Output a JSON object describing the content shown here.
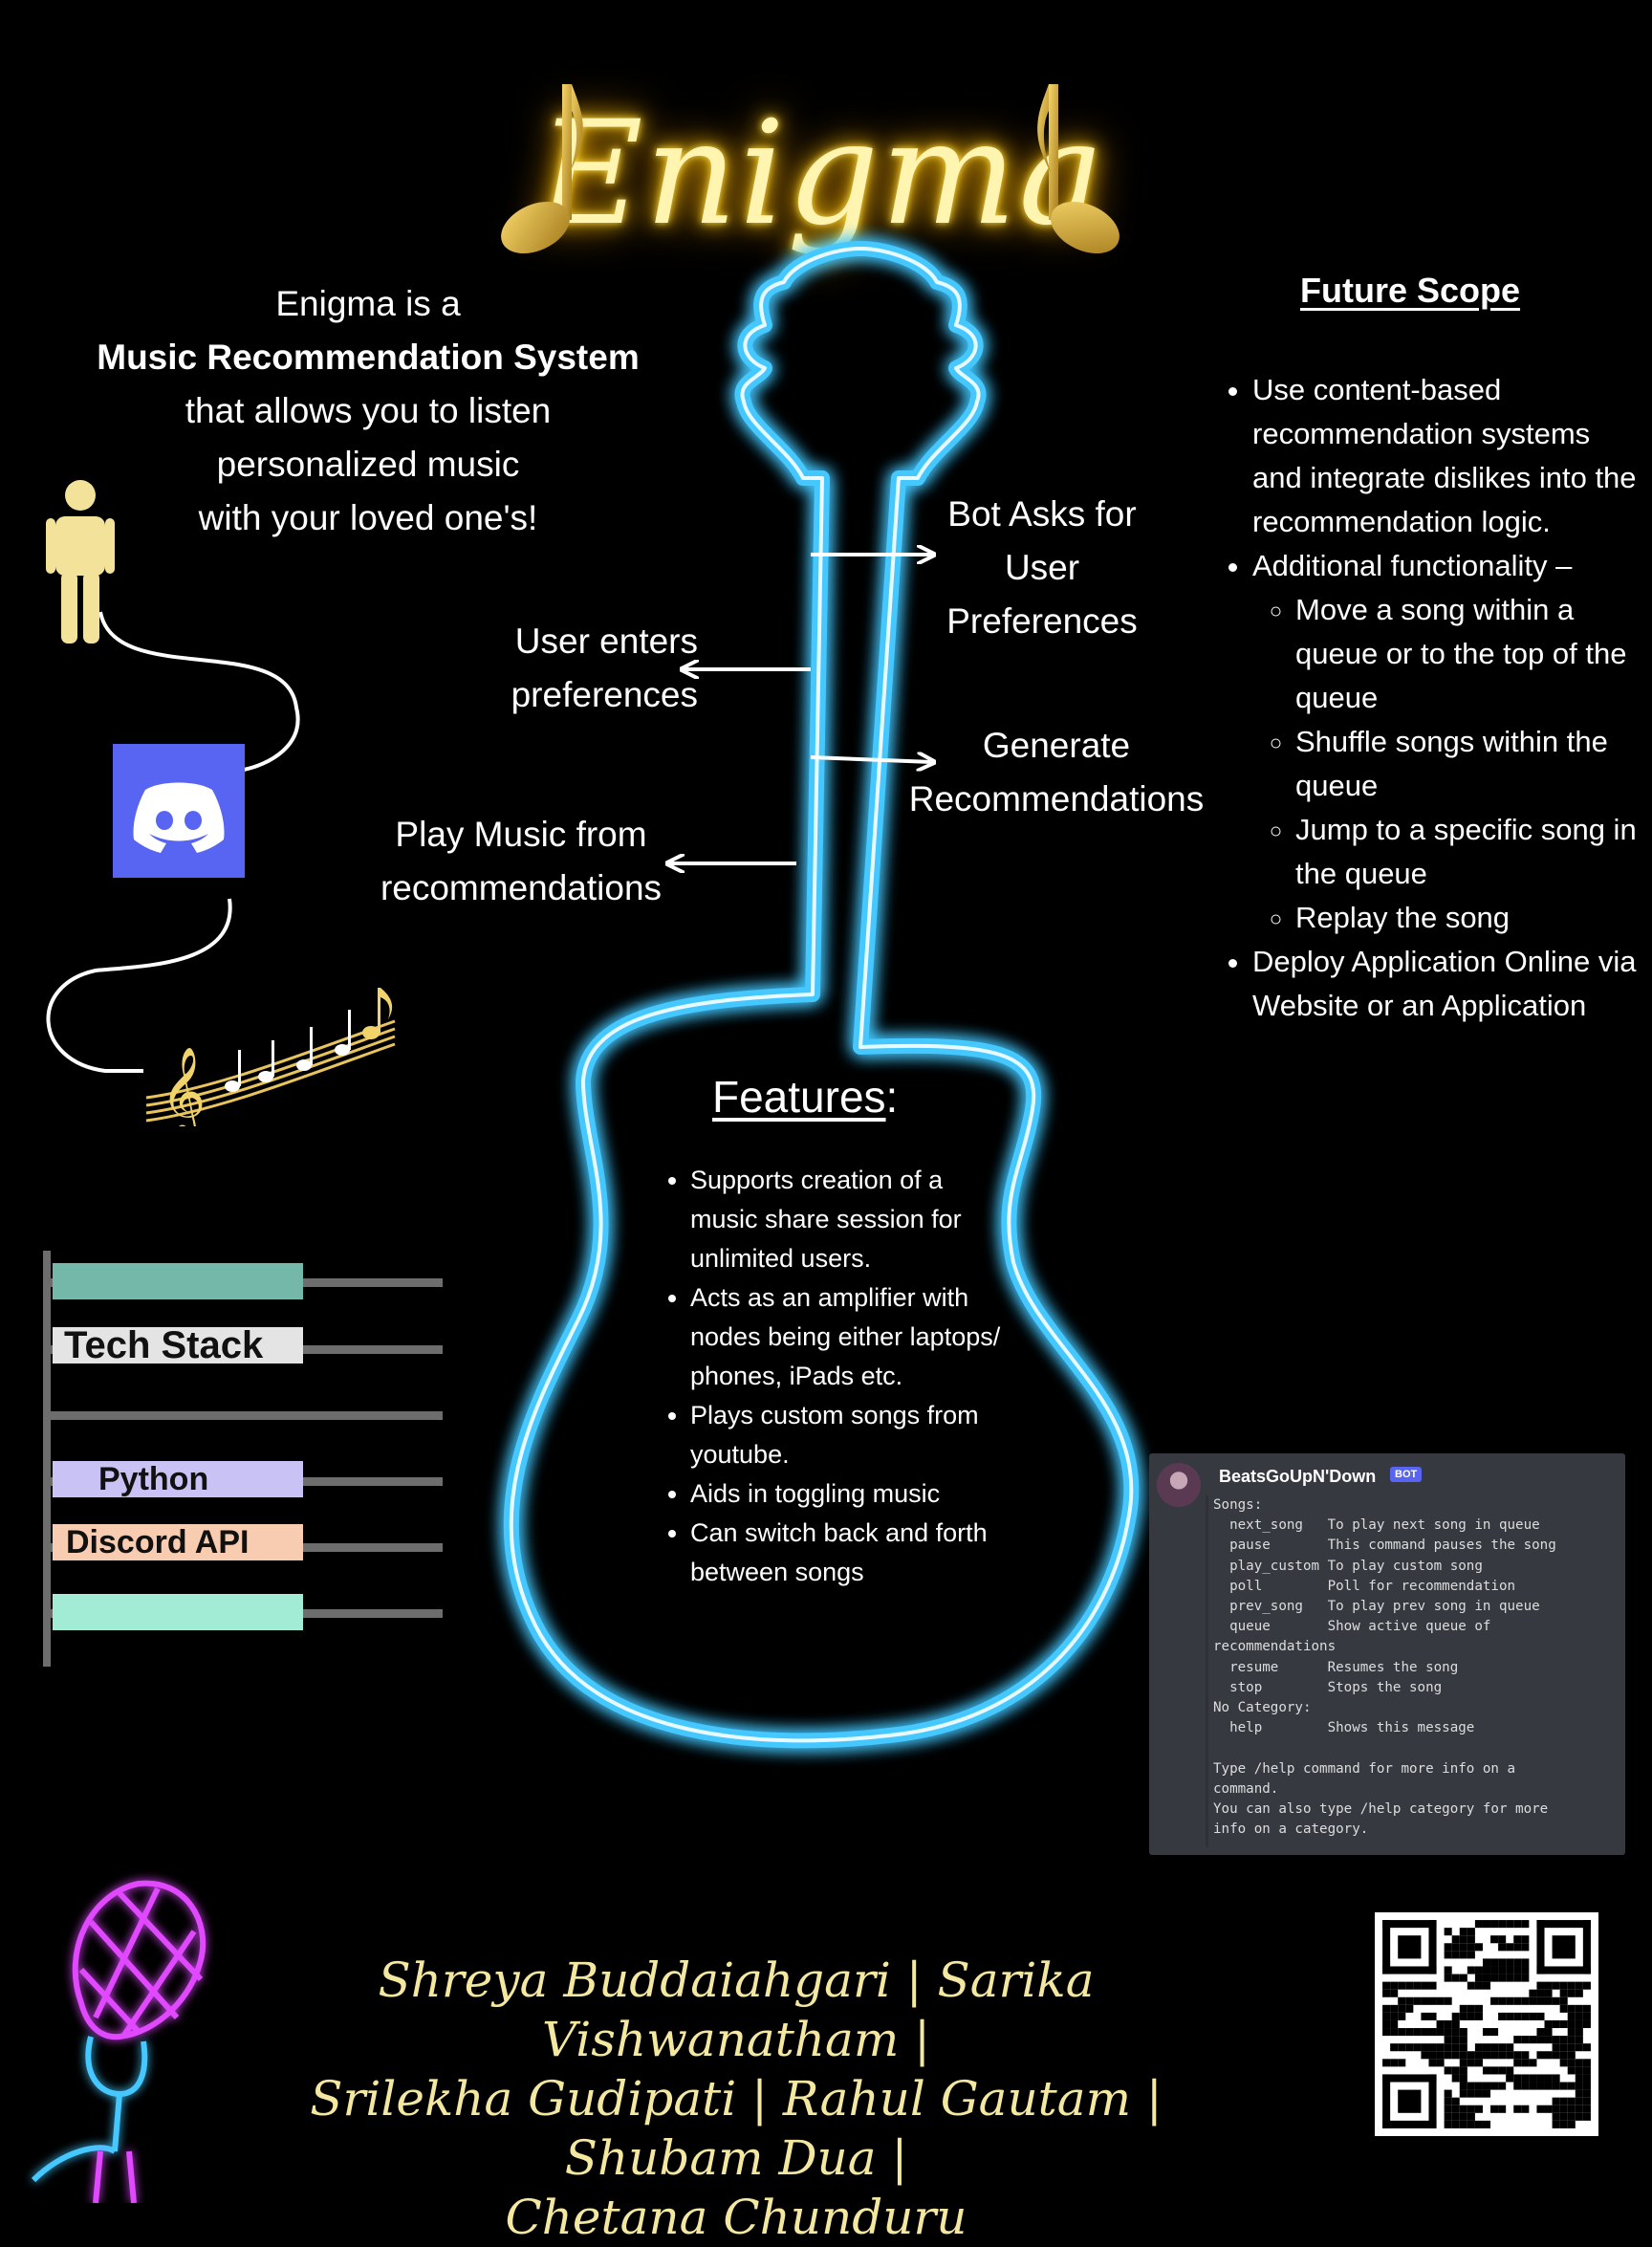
{
  "header": {
    "title": "Enigma"
  },
  "intro": {
    "line1": "Enigma is a",
    "line2": "Music Recommendation System",
    "line3": "that allows you to listen",
    "line4": "personalized music",
    "line5": "with your loved one's!"
  },
  "flow": {
    "ask_line1": "Bot Asks for",
    "ask_line2": "User",
    "ask_line3": "Preferences",
    "enter_line1": "User enters",
    "enter_line2": "preferences",
    "gen_line1": "Generate",
    "gen_line2": "Recommendations",
    "play_line1": "Play Music from",
    "play_line2": "recommendations"
  },
  "future_scope": {
    "title": "Future Scope",
    "items": [
      "Use content-based recommendation systems and integrate dislikes into the recommendation logic.",
      "Additional functionality –",
      "Deploy Application Online via Website or an Application"
    ],
    "sub_items": [
      "Move a song within a queue or to the top of the queue",
      "Shuffle songs within the queue",
      "Jump to a specific song in the queue",
      "Replay the song"
    ]
  },
  "features": {
    "title": "Features",
    "colon": ":",
    "items": [
      "Supports creation of a music share session for unlimited users.",
      "Acts as an amplifier with nodes being either laptops/ phones, iPads etc.",
      "Plays custom songs from youtube.",
      "Aids in toggling music",
      "Can switch back and forth between songs"
    ]
  },
  "tech_stack": {
    "title": "Tech Stack",
    "items": [
      "Python",
      "Discord API"
    ],
    "colors": {
      "teal": "#73b8a8",
      "lavender": "#c8c2f5",
      "peach": "#f8ccb0",
      "mint": "#a2ecd5",
      "light": "#e4e4e4"
    }
  },
  "discord": {
    "bot_name": "BeatsGoUpN'Down",
    "bot_tag": "BOT",
    "help_text": "Songs:\n  next_song   To play next song in queue\n  pause       This command pauses the song\n  play_custom To play custom song\n  poll        Poll for recommendation\n  prev_song   To play prev song in queue\n  queue       Show active queue of\nrecommendations\n  resume      Resumes the song\n  stop        Stops the song\nNo Category:\n  help        Shows this message\n\nType /help command for more info on a\ncommand.\nYou can also type /help category for more\ninfo on a category."
  },
  "authors": {
    "line1": "Shreya Buddaiahgari | Sarika Vishwanatham |",
    "line2": "Srilekha Gudipati | Rahul Gautam | Shubam Dua |",
    "line3": "Chetana Chunduru"
  },
  "icons": [
    "music-note-icon",
    "person-icon",
    "discord-logo-icon",
    "music-staff-icon",
    "microphone-icon",
    "qr-code-icon",
    "arrow-icon"
  ],
  "colors": {
    "neon_blue": "#45c8ff",
    "gold": "#ffd84a",
    "neon_pink": "#e048ff",
    "discord_blurple": "#5865f2",
    "person": "#f3e39a"
  }
}
